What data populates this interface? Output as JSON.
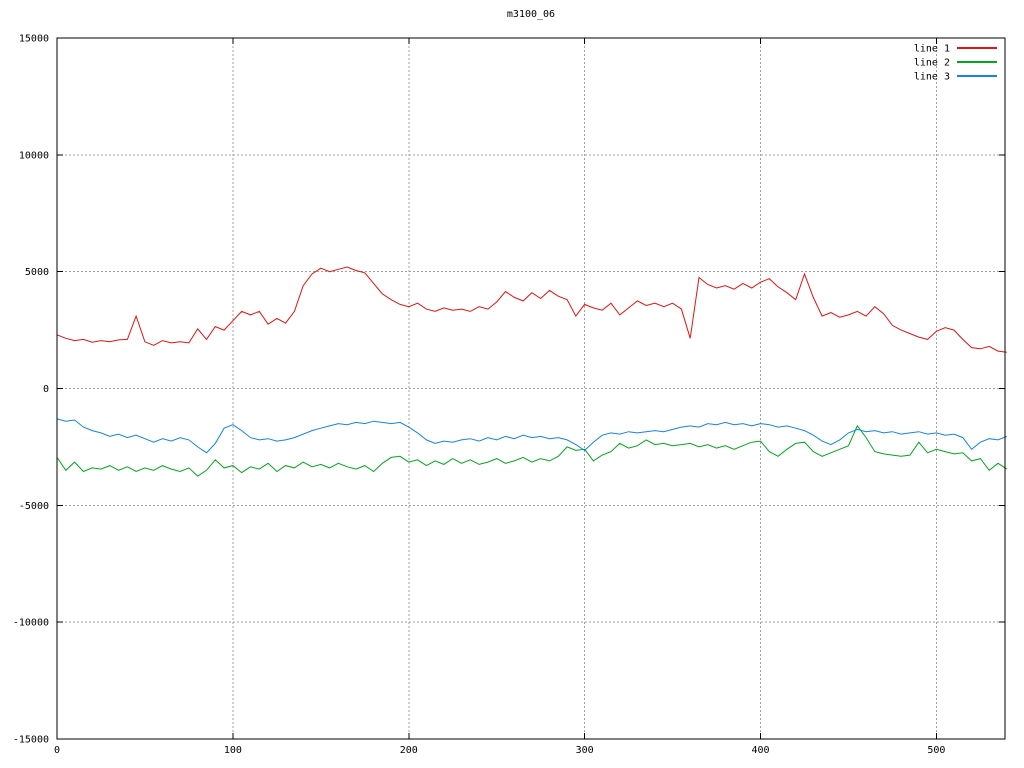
{
  "title": "m3100_06",
  "colors": {
    "background": "#ffffff",
    "frame": "#000000",
    "grid": "#a0a0a0",
    "text": "#000000",
    "line1": "#e41310",
    "line2": "#00a81c",
    "line3": "#1484e6"
  },
  "legend": {
    "position": "inside-top-right",
    "entries": [
      {
        "label": "line 1",
        "color": "#e41310"
      },
      {
        "label": "line 2",
        "color": "#00a81c"
      },
      {
        "label": "line 3",
        "color": "#1484e6"
      }
    ]
  },
  "chart_data": {
    "type": "line",
    "title": "m3100_06",
    "xlabel": "",
    "ylabel": "",
    "grid": true,
    "legend_position": "inside-top-right",
    "axes": {
      "x": {
        "min": 0,
        "max": 539,
        "ticks": [
          0,
          100,
          200,
          300,
          400,
          500
        ]
      },
      "y": {
        "min": -15000,
        "max": 15000,
        "ticks": [
          15000,
          10000,
          5000,
          0,
          -5000,
          -10000,
          -15000
        ]
      }
    },
    "x": [
      0,
      5,
      10,
      15,
      20,
      25,
      30,
      35,
      40,
      45,
      50,
      55,
      60,
      65,
      70,
      75,
      80,
      85,
      90,
      95,
      100,
      105,
      110,
      115,
      120,
      125,
      130,
      135,
      140,
      145,
      150,
      155,
      160,
      165,
      170,
      175,
      180,
      185,
      190,
      195,
      200,
      205,
      210,
      215,
      220,
      225,
      230,
      235,
      240,
      245,
      250,
      255,
      260,
      265,
      270,
      275,
      280,
      285,
      290,
      295,
      300,
      305,
      310,
      315,
      320,
      325,
      330,
      335,
      340,
      345,
      350,
      355,
      360,
      365,
      370,
      375,
      380,
      385,
      390,
      395,
      400,
      405,
      410,
      415,
      420,
      425,
      430,
      435,
      440,
      445,
      450,
      455,
      460,
      465,
      470,
      475,
      480,
      485,
      490,
      495,
      500,
      505,
      510,
      515,
      520,
      525,
      530,
      535,
      540
    ],
    "series": [
      {
        "name": "line 1",
        "color": "#e41310",
        "values": [
          2300,
          2150,
          2050,
          2100,
          1980,
          2050,
          2000,
          2080,
          2100,
          3100,
          2000,
          1850,
          2050,
          1950,
          2000,
          1950,
          2550,
          2100,
          2650,
          2500,
          2900,
          3300,
          3150,
          3300,
          2750,
          3000,
          2800,
          3300,
          4400,
          4900,
          5150,
          5000,
          5100,
          5200,
          5050,
          4950,
          4500,
          4050,
          3800,
          3600,
          3500,
          3650,
          3400,
          3300,
          3450,
          3350,
          3400,
          3300,
          3500,
          3400,
          3700,
          4150,
          3900,
          3750,
          4100,
          3850,
          4200,
          3950,
          3800,
          3100,
          3600,
          3450,
          3350,
          3650,
          3150,
          3450,
          3750,
          3550,
          3650,
          3500,
          3650,
          3400,
          2150,
          4750,
          4450,
          4300,
          4400,
          4250,
          4500,
          4300,
          4550,
          4700,
          4350,
          4100,
          3800,
          4900,
          3900,
          3100,
          3250,
          3050,
          3150,
          3300,
          3100,
          3500,
          3200,
          2700,
          2500,
          2350,
          2200,
          2100,
          2450,
          2600,
          2500,
          2100,
          1750,
          1700,
          1800,
          1600,
          1550
        ]
      },
      {
        "name": "line 2",
        "color": "#00a81c",
        "values": [
          -2950,
          -3500,
          -3150,
          -3550,
          -3400,
          -3450,
          -3300,
          -3500,
          -3350,
          -3550,
          -3400,
          -3500,
          -3300,
          -3450,
          -3550,
          -3400,
          -3750,
          -3500,
          -3050,
          -3400,
          -3300,
          -3600,
          -3350,
          -3450,
          -3200,
          -3550,
          -3300,
          -3400,
          -3150,
          -3350,
          -3250,
          -3400,
          -3200,
          -3350,
          -3450,
          -3300,
          -3550,
          -3200,
          -2950,
          -2900,
          -3150,
          -3050,
          -3300,
          -3100,
          -3250,
          -3000,
          -3200,
          -3050,
          -3250,
          -3150,
          -3000,
          -3200,
          -3100,
          -2950,
          -3150,
          -3000,
          -3100,
          -2900,
          -2500,
          -2650,
          -2600,
          -3100,
          -2850,
          -2700,
          -2350,
          -2550,
          -2450,
          -2200,
          -2400,
          -2350,
          -2450,
          -2400,
          -2350,
          -2500,
          -2400,
          -2550,
          -2450,
          -2600,
          -2450,
          -2300,
          -2250,
          -2700,
          -2900,
          -2600,
          -2350,
          -2300,
          -2700,
          -2900,
          -2750,
          -2600,
          -2450,
          -1600,
          -2100,
          -2700,
          -2800,
          -2850,
          -2900,
          -2850,
          -2300,
          -2750,
          -2600,
          -2700,
          -2800,
          -2750,
          -3100,
          -3000,
          -3500,
          -3200,
          -3450
        ]
      },
      {
        "name": "line 3",
        "color": "#1484e6",
        "values": [
          -1300,
          -1400,
          -1350,
          -1650,
          -1800,
          -1900,
          -2050,
          -1950,
          -2100,
          -2000,
          -2150,
          -2300,
          -2150,
          -2250,
          -2100,
          -2200,
          -2500,
          -2750,
          -2350,
          -1700,
          -1550,
          -1800,
          -2100,
          -2200,
          -2150,
          -2250,
          -2200,
          -2100,
          -1950,
          -1800,
          -1700,
          -1600,
          -1500,
          -1550,
          -1450,
          -1500,
          -1400,
          -1450,
          -1500,
          -1450,
          -1650,
          -1900,
          -2200,
          -2350,
          -2250,
          -2300,
          -2200,
          -2150,
          -2250,
          -2100,
          -2200,
          -2050,
          -2150,
          -2000,
          -2100,
          -2050,
          -2150,
          -2100,
          -2200,
          -2400,
          -2650,
          -2300,
          -2000,
          -1900,
          -1950,
          -1850,
          -1900,
          -1850,
          -1800,
          -1850,
          -1750,
          -1650,
          -1600,
          -1650,
          -1500,
          -1550,
          -1450,
          -1550,
          -1500,
          -1600,
          -1500,
          -1550,
          -1650,
          -1600,
          -1700,
          -1800,
          -2000,
          -2250,
          -2400,
          -2200,
          -1900,
          -1750,
          -1850,
          -1800,
          -1900,
          -1850,
          -1950,
          -1900,
          -1850,
          -1950,
          -1900,
          -2000,
          -1950,
          -2100,
          -2600,
          -2300,
          -2150,
          -2200,
          -2050
        ]
      }
    ]
  }
}
